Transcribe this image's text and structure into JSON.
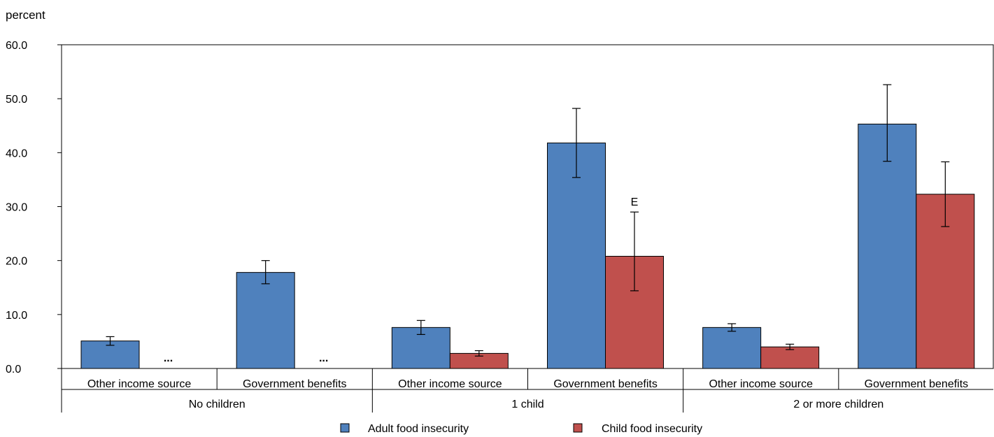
{
  "chart_data": {
    "type": "bar",
    "ylabel": "percent",
    "ylim": [
      0,
      60
    ],
    "yticks": [
      "0.0",
      "10.0",
      "20.0",
      "30.0",
      "40.0",
      "50.0",
      "60.0"
    ],
    "grid": false,
    "legend_position": "bottom",
    "groups": [
      {
        "label": "No children",
        "categories": [
          {
            "label": "Other income source",
            "values": [
              5.1,
              null
            ],
            "errors": [
              [
                4.3,
                5.9
              ],
              null
            ],
            "notes": [
              "",
              "..."
            ]
          },
          {
            "label": "Government benefits",
            "values": [
              17.8,
              null
            ],
            "errors": [
              [
                15.7,
                20.0
              ],
              null
            ],
            "notes": [
              "",
              "..."
            ]
          }
        ]
      },
      {
        "label": "1 child",
        "categories": [
          {
            "label": "Other income source",
            "values": [
              7.6,
              2.8
            ],
            "errors": [
              [
                6.3,
                8.9
              ],
              [
                2.3,
                3.3
              ]
            ],
            "notes": [
              "",
              ""
            ]
          },
          {
            "label": "Government benefits",
            "values": [
              41.8,
              20.8
            ],
            "errors": [
              [
                35.4,
                48.2
              ],
              [
                14.4,
                29.0
              ]
            ],
            "notes": [
              "",
              "E"
            ]
          }
        ]
      },
      {
        "label": "2  or more children",
        "categories": [
          {
            "label": "Other income source",
            "values": [
              7.6,
              4.0
            ],
            "errors": [
              [
                6.9,
                8.3
              ],
              [
                3.5,
                4.5
              ]
            ],
            "notes": [
              "",
              ""
            ]
          },
          {
            "label": "Government benefits",
            "values": [
              45.3,
              32.3
            ],
            "errors": [
              [
                38.4,
                52.6
              ],
              [
                26.3,
                38.3
              ]
            ],
            "notes": [
              "",
              ""
            ]
          }
        ]
      }
    ],
    "series": [
      {
        "name": "Adult food insecurity",
        "color": "#4f81bd"
      },
      {
        "name": "Child food insecurity",
        "color": "#c0504d"
      }
    ]
  }
}
